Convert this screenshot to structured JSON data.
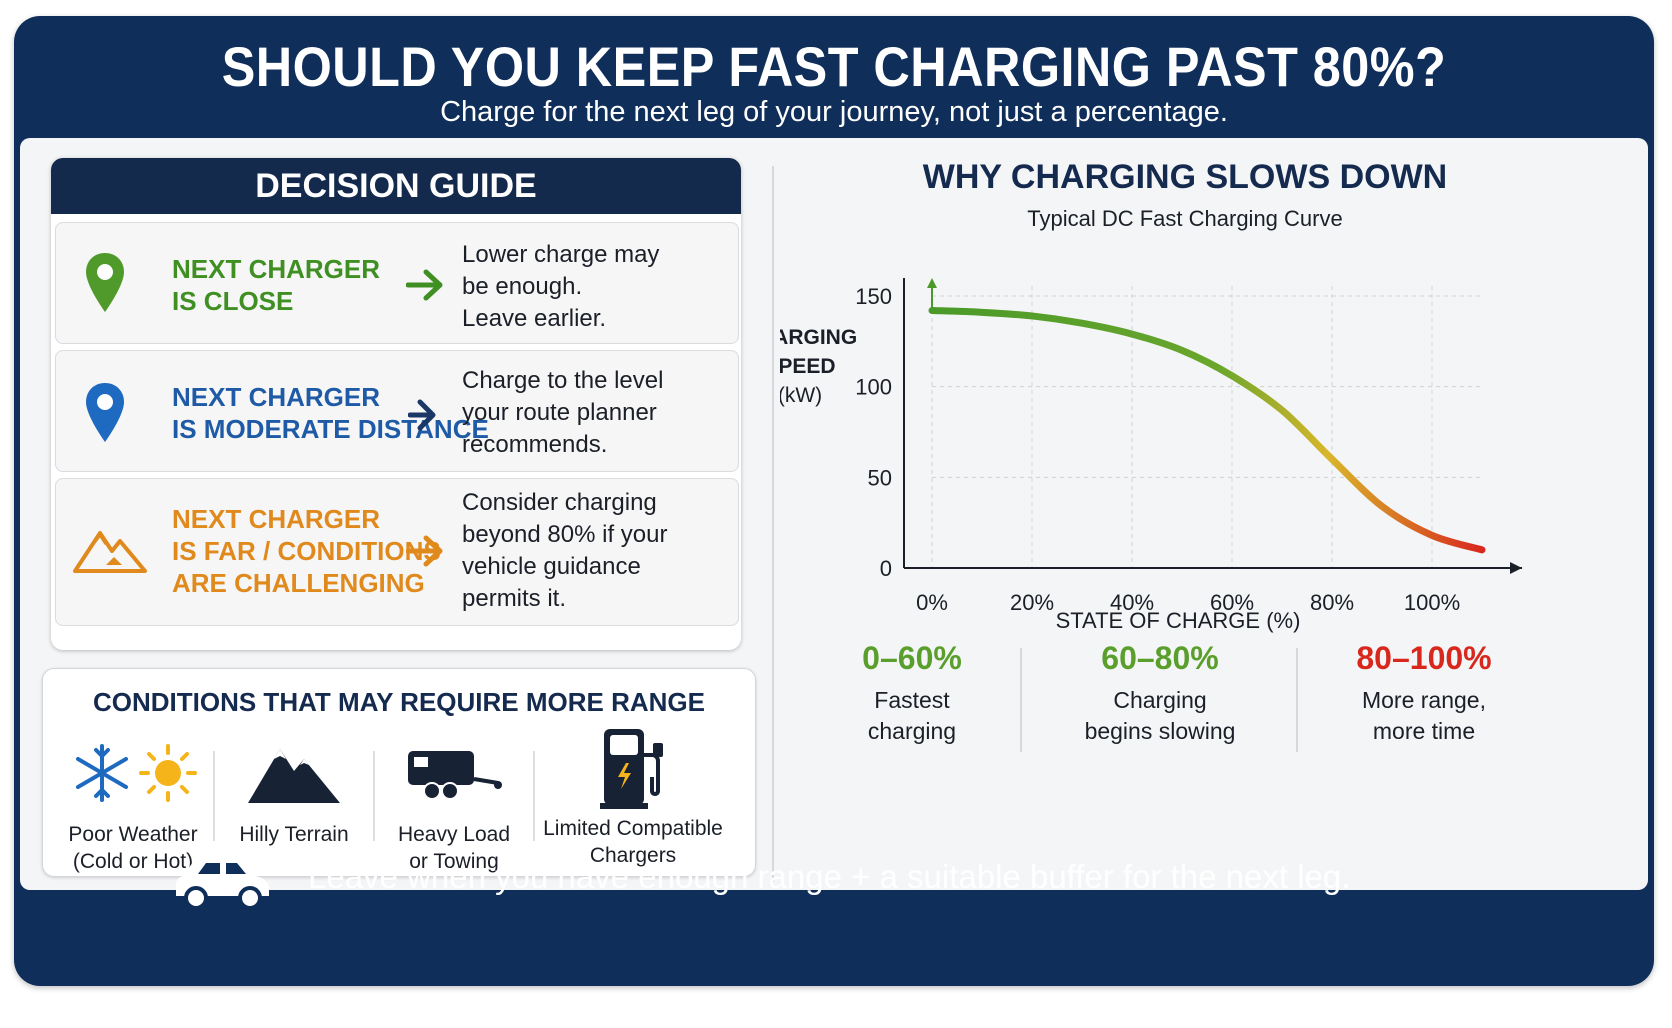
{
  "header": {
    "title": "SHOULD YOU KEEP FAST CHARGING PAST 80%?",
    "subtitle": "Charge for the next leg of your journey, not just a percentage."
  },
  "decision_guide": {
    "title": "DECISION GUIDE",
    "rows": [
      {
        "label_lines": [
          "NEXT CHARGER",
          "IS CLOSE"
        ],
        "text_lines": [
          "Lower charge may",
          "be enough.",
          "Leave earlier."
        ],
        "color": "#3f8f22",
        "icon": "green-map-pin-icon"
      },
      {
        "label_lines": [
          "NEXT CHARGER",
          "IS MODERATE DISTANCE"
        ],
        "text_lines": [
          "Charge to the level",
          "your route planner",
          "recommends."
        ],
        "color": "#1e5aa6",
        "icon": "blue-map-pin-icon"
      },
      {
        "label_lines": [
          "NEXT CHARGER",
          "IS FAR / CONDITIONS",
          "ARE CHALLENGING"
        ],
        "text_lines": [
          "Consider charging",
          "beyond 80% if your",
          "vehicle guidance",
          "permits it."
        ],
        "color": "#e08a1e",
        "icon": "mountain-icon"
      }
    ]
  },
  "conditions": {
    "title": "CONDITIONS THAT MAY REQUIRE MORE RANGE",
    "items": [
      {
        "label_lines": [
          "Poor Weather",
          "(Cold or Hot)"
        ],
        "icon": "snowflake-sun-icon"
      },
      {
        "label_lines": [
          "Hilly Terrain"
        ],
        "icon": "mountains-icon"
      },
      {
        "label_lines": [
          "Heavy Load",
          "or Towing"
        ],
        "icon": "trailer-icon"
      },
      {
        "label_lines": [
          "Limited Compatible",
          "Chargers"
        ],
        "icon": "charging-station-icon"
      }
    ]
  },
  "chart": {
    "title": "WHY CHARGING SLOWS DOWN",
    "subtitle": "Typical DC Fast Charging Curve"
  },
  "chart_data": {
    "type": "line",
    "ylabel_lines": [
      "CHARGING",
      "SPEED",
      "(kW)"
    ],
    "xlabel": "STATE OF CHARGE (%)",
    "x_ticks": [
      "0%",
      "20%",
      "40%",
      "60%",
      "80%",
      "100%"
    ],
    "y_ticks": [
      "0",
      "50",
      "100",
      "150"
    ],
    "xlim": [
      0,
      110
    ],
    "ylim": [
      0,
      150
    ],
    "grid": true,
    "series": [
      {
        "x": [
          0,
          10,
          20,
          30,
          40,
          50,
          60,
          70,
          80,
          90,
          100,
          110
        ],
        "y": [
          142,
          141,
          139,
          135,
          129,
          120,
          106,
          87,
          60,
          34,
          18,
          10
        ]
      }
    ],
    "colors": {
      "start": "#4a9a2a",
      "mid": "#d9b62a",
      "end": "#d8281e"
    }
  },
  "phases": [
    {
      "range": "0–60%",
      "desc_lines": [
        "Fastest",
        "charging"
      ],
      "color": "#5a9f2c"
    },
    {
      "range": "60–80%",
      "desc_lines": [
        "Charging",
        "begins slowing"
      ],
      "color": "#5a9f2c"
    },
    {
      "range": "80–100%",
      "desc_lines": [
        "More range,",
        "more time"
      ],
      "color": "#d8281e"
    }
  ],
  "footer": {
    "text": "Leave when you have enough range + a suitable buffer for the next leg.",
    "icon": "car-icon"
  }
}
